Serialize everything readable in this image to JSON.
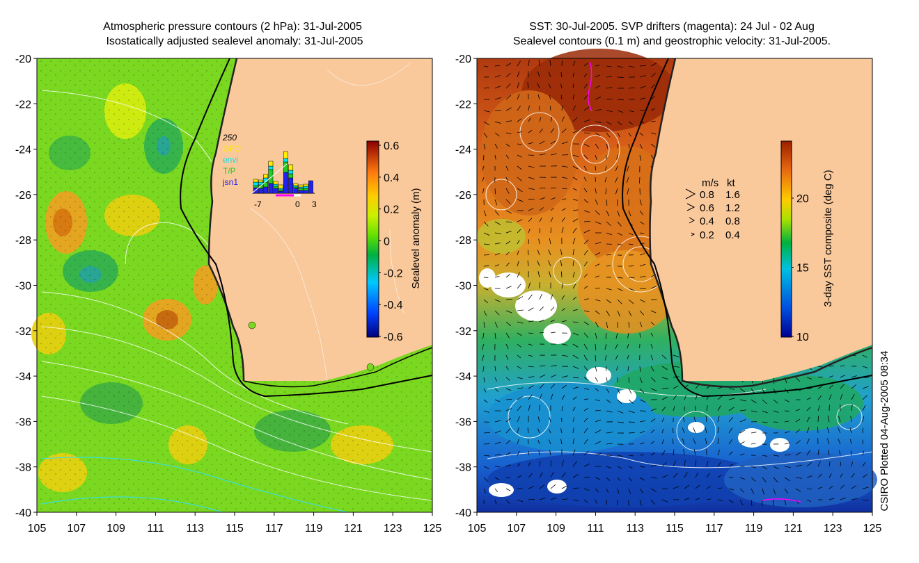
{
  "left": {
    "title_line1": "Atmospheric pressure contours (2 hPa): 31-Jul-2005",
    "title_line2": "Isostatically adjusted sealevel anomaly: 31-Jul-2005",
    "y_ticks": [
      "-20",
      "-22",
      "-24",
      "-26",
      "-28",
      "-30",
      "-32",
      "-34",
      "-36",
      "-38",
      "-40"
    ],
    "x_ticks": [
      "105",
      "107",
      "109",
      "111",
      "113",
      "115",
      "117",
      "119",
      "121",
      "123",
      "125"
    ],
    "colorbar": {
      "label": "Sealevel anomaly (m)",
      "ticks": [
        "0.6",
        "0.4",
        "0.2",
        "0",
        "-0.2",
        "-0.4",
        "-0.6"
      ]
    },
    "inset": {
      "count_label": "250",
      "legend": [
        {
          "name": "GFO",
          "color": "#ffee00"
        },
        {
          "name": "envi",
          "color": "#00e5ee"
        },
        {
          "name": "T/P",
          "color": "#22cc22"
        },
        {
          "name": "jsn1",
          "color": "#2222ee"
        }
      ],
      "x_ticks": [
        "-7",
        "0",
        "3"
      ]
    }
  },
  "right": {
    "title_line1": "SST: 30-Jul-2005. SVP drifters (magenta): 24 Jul - 02 Aug",
    "title_line2": "Sealevel contours (0.1 m) and geostrophic velocity: 31-Jul-2005.",
    "y_ticks": [
      "-20",
      "-22",
      "-24",
      "-26",
      "-28",
      "-30",
      "-32",
      "-34",
      "-36",
      "-38",
      "-40"
    ],
    "x_ticks": [
      "105",
      "107",
      "109",
      "111",
      "113",
      "115",
      "117",
      "119",
      "121",
      "123",
      "125"
    ],
    "colorbar": {
      "label": "3-day SST composite (deg C)",
      "ticks": [
        "20",
        "15",
        "10"
      ]
    },
    "velocity_key": {
      "header_ms": "m/s",
      "header_kt": "kt",
      "rows": [
        {
          "ms": "0.8",
          "kt": "1.6"
        },
        {
          "ms": "0.6",
          "kt": "1.2"
        },
        {
          "ms": "0.4",
          "kt": "0.8"
        },
        {
          "ms": "0.2",
          "kt": "0.4"
        }
      ]
    }
  },
  "credit": "CSIRO Plotted 04-Aug-2005 08:34",
  "colors": {
    "land": "#f9c89b",
    "sla_low": "#000080",
    "sla_high": "#8b0000",
    "sst_warm": "#b83a10",
    "sst_cool": "#1e78d8"
  }
}
